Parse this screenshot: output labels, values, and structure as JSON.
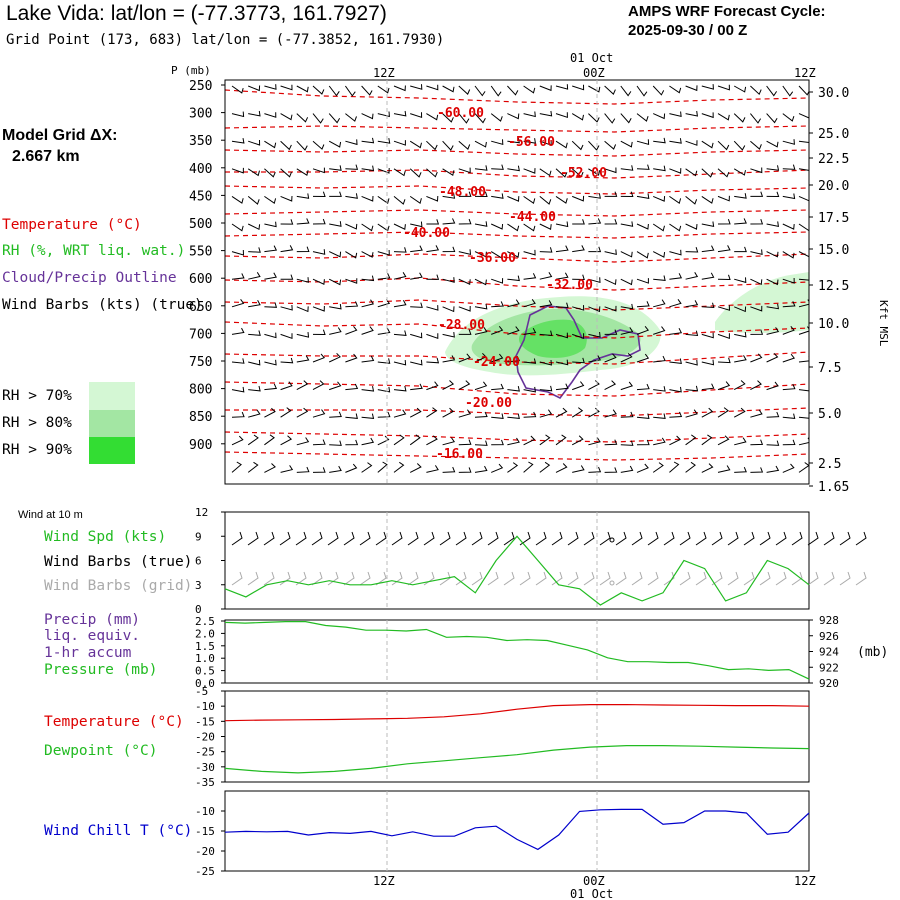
{
  "header": {
    "title": "Lake Vida:  lat/lon = (-77.3773, 161.7927)",
    "grid_point": "Grid Point (173, 683) lat/lon = (-77.3852, 161.7930)",
    "cycle_line1": "AMPS WRF Forecast Cycle:",
    "cycle_line2": "2025-09-30 / 00  Z"
  },
  "model_grid": {
    "label": "Model Grid ΔX:",
    "value": "2.667 km"
  },
  "colors": {
    "temperature": "#dd0000",
    "rh": "#22bb22",
    "cloud": "#663399",
    "wind": "#000000",
    "wind_grid": "#aaaaaa",
    "pressure": "#22bb22",
    "wind_chill": "#0000cc",
    "rh70": "#d4f7d4",
    "rh80": "#a3e6a3",
    "rh90": "#33dd33"
  },
  "legend": {
    "temperature": "Temperature (°C)",
    "rh": "RH (%, WRT liq. wat.)",
    "cloud": "Cloud/Precip Outline",
    "wind": "Wind Barbs (kts) (true)",
    "rh_levels": [
      "RH > 70%",
      "RH > 80%",
      "RH > 90%"
    ]
  },
  "time_axis": {
    "top_labels": [
      "12Z",
      "00Z",
      "12Z"
    ],
    "day_label": "01 Oct",
    "bottom_labels": [
      "12Z",
      "00Z",
      "12Z"
    ]
  },
  "chart_data": [
    {
      "type": "contour",
      "name": "cross-section",
      "y_unit": "P (mb)",
      "right_unit": "Kft MSL",
      "pressure_levels": [
        250,
        300,
        350,
        400,
        450,
        500,
        550,
        600,
        650,
        700,
        750,
        800,
        850,
        900
      ],
      "height_ticks_kft": [
        "30.0",
        "25.0",
        "22.5",
        "20.0",
        "17.5",
        "15.0",
        "12.5",
        "10.0",
        "7.5",
        "5.0",
        "2.5",
        "1.65"
      ],
      "temperature_contour_labels": [
        "-60.00",
        "-56.00",
        "-52.00",
        "-48.00",
        "-44.00",
        "-40.00",
        "-36.00",
        "-32.00",
        "-28.00",
        "-24.00",
        "-20.00",
        "-16.00"
      ]
    },
    {
      "type": "line",
      "name": "wind-10m",
      "title": "Wind at 10 m",
      "labels": [
        "Wind Spd (kts)",
        "Wind Barbs (true)",
        "Wind Barbs (grid)"
      ],
      "ylim": [
        0,
        12
      ],
      "yticks": [
        "12",
        "9",
        "6",
        "3",
        "0"
      ],
      "hours": [
        0,
        2,
        4,
        6,
        8,
        10,
        12,
        14,
        16,
        18,
        20,
        22,
        24,
        26,
        28,
        30,
        32,
        34,
        36
      ],
      "wind_speed": [
        2.5,
        1.5,
        3,
        3.5,
        3,
        3.5,
        3,
        3,
        3.5,
        3,
        3.5,
        4,
        2,
        6,
        9,
        6,
        3,
        2.5,
        0.5,
        2,
        1,
        2,
        6,
        5,
        1,
        2,
        6,
        5,
        3
      ]
    },
    {
      "type": "line",
      "name": "precip-pressure",
      "labels": [
        "Precip (mm)",
        "liq. equiv.",
        "1-hr accum",
        "Pressure (mb)"
      ],
      "left_ticks": [
        "2.5",
        "2.0",
        "1.5",
        "1.0",
        "0.5",
        "0.0"
      ],
      "right_ticks": [
        "928",
        "926",
        "924",
        "922",
        "920"
      ],
      "right_unit": "(mb)",
      "pressure": [
        927.7,
        927.6,
        927.7,
        927.8,
        927.8,
        927.3,
        927.1,
        926.7,
        926.7,
        926.6,
        926.8,
        925.8,
        925.9,
        925.8,
        925.4,
        925.5,
        925.4,
        924.8,
        924.2,
        923.2,
        922.7,
        922.7,
        922.6,
        922.6,
        922.2,
        921.7,
        921.8,
        921.6,
        921.7,
        920.5
      ]
    },
    {
      "type": "line",
      "name": "temp-dewpoint",
      "labels": [
        "Temperature (°C)",
        "Dewpoint (°C)"
      ],
      "yticks": [
        "-5",
        "-10",
        "-15",
        "-20",
        "-25",
        "-30",
        "-35"
      ],
      "ylim": [
        -35,
        -5
      ],
      "temperature": [
        -14.8,
        -14.6,
        -14.5,
        -14.4,
        -14.2,
        -14.0,
        -13.5,
        -12.5,
        -11.0,
        -9.8,
        -9.5,
        -9.5,
        -9.6,
        -9.7,
        -9.8,
        -9.8,
        -10.0
      ],
      "dewpoint": [
        -30.5,
        -31.5,
        -32.0,
        -31.5,
        -30.5,
        -29.0,
        -28.0,
        -27.0,
        -26.0,
        -24.5,
        -23.5,
        -23.0,
        -23.0,
        -23.2,
        -23.5,
        -23.8,
        -24.0
      ]
    },
    {
      "type": "line",
      "name": "wind-chill",
      "labels": [
        "Wind Chill T (°C)"
      ],
      "yticks": [
        "-10",
        "-15",
        "-20",
        "-25"
      ],
      "ylim": [
        -25,
        -5
      ],
      "wind_chill": [
        -15.3,
        -15.1,
        -15.2,
        -15.1,
        -16.0,
        -15.4,
        -15.6,
        -15.1,
        -16.2,
        -15.2,
        -16.3,
        -16.3,
        -14.2,
        -13.8,
        -17.1,
        -19.6,
        -16.0,
        -10.1,
        -9.7,
        -9.6,
        -9.6,
        -13.3,
        -12.9,
        -10.0,
        -10.0,
        -10.5,
        -15.8,
        -15.3,
        -10.5
      ]
    }
  ]
}
